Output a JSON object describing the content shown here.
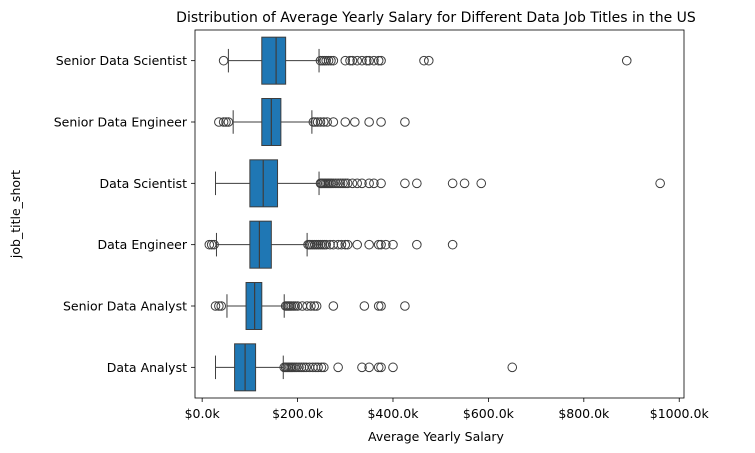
{
  "chart_data": {
    "type": "boxplot",
    "orientation": "horizontal",
    "title": "Distribution of Average Yearly Salary for Different Data Job Titles in the US",
    "xlabel": "Average Yearly Salary",
    "ylabel": "job_title_short",
    "xlim": [
      -15000,
      1010000
    ],
    "xticks": [
      {
        "value": 0,
        "label": "$0.0k"
      },
      {
        "value": 200000,
        "label": "$200.0k"
      },
      {
        "value": 400000,
        "label": "$400.0k"
      },
      {
        "value": 600000,
        "label": "$600.0k"
      },
      {
        "value": 800000,
        "label": "$800.0k"
      },
      {
        "value": 1000000,
        "label": "$1000.0k"
      }
    ],
    "box_color": "#1f77b4",
    "categories": [
      "Senior Data Scientist",
      "Senior Data Engineer",
      "Data Scientist",
      "Data Engineer",
      "Senior Data Analyst",
      "Data Analyst"
    ],
    "boxes": [
      {
        "category": "Senior Data Scientist",
        "whisker_low": 55000,
        "q1": 125000,
        "median": 155000,
        "q3": 175000,
        "whisker_high": 245000,
        "outliers": [
          45000,
          248000,
          252000,
          256000,
          260000,
          265000,
          270000,
          275000,
          300000,
          310000,
          315000,
          325000,
          335000,
          345000,
          350000,
          360000,
          370000,
          375000,
          465000,
          475000,
          890000
        ]
      },
      {
        "category": "Senior Data Engineer",
        "whisker_low": 65000,
        "q1": 125000,
        "median": 145000,
        "q3": 165000,
        "whisker_high": 230000,
        "outliers": [
          35000,
          45000,
          50000,
          55000,
          233000,
          237000,
          242000,
          248000,
          255000,
          262000,
          275000,
          300000,
          320000,
          350000,
          375000,
          425000
        ]
      },
      {
        "category": "Data Scientist",
        "whisker_low": 28000,
        "q1": 100000,
        "median": 128000,
        "q3": 158000,
        "whisker_high": 245000,
        "outliers": [
          248000,
          250000,
          253000,
          256000,
          259000,
          262000,
          265000,
          268000,
          271000,
          275000,
          280000,
          285000,
          290000,
          295000,
          300000,
          305000,
          315000,
          325000,
          335000,
          350000,
          360000,
          375000,
          425000,
          450000,
          525000,
          550000,
          585000,
          960000
        ]
      },
      {
        "category": "Data Engineer",
        "whisker_low": 30000,
        "q1": 100000,
        "median": 120000,
        "q3": 145000,
        "whisker_high": 220000,
        "outliers": [
          15000,
          20000,
          25000,
          222000,
          225000,
          228000,
          232000,
          236000,
          240000,
          244000,
          248000,
          252000,
          256000,
          260000,
          268000,
          275000,
          285000,
          292000,
          300000,
          305000,
          325000,
          350000,
          370000,
          375000,
          385000,
          400000,
          450000,
          525000
        ]
      },
      {
        "category": "Senior Data Analyst",
        "whisker_low": 52000,
        "q1": 92000,
        "median": 110000,
        "q3": 125000,
        "whisker_high": 172000,
        "outliers": [
          28000,
          35000,
          40000,
          175000,
          178000,
          181000,
          184000,
          187000,
          191000,
          195000,
          200000,
          210000,
          220000,
          228000,
          235000,
          240000,
          275000,
          340000,
          370000,
          375000,
          425000
        ]
      },
      {
        "category": "Data Analyst",
        "whisker_low": 28000,
        "q1": 68000,
        "median": 90000,
        "q3": 112000,
        "whisker_high": 170000,
        "outliers": [
          172000,
          175000,
          178000,
          181000,
          184000,
          187000,
          190000,
          194000,
          198000,
          203000,
          208000,
          213000,
          218000,
          225000,
          232000,
          238000,
          243000,
          250000,
          255000,
          285000,
          335000,
          350000,
          370000,
          375000,
          400000,
          650000
        ]
      }
    ]
  }
}
